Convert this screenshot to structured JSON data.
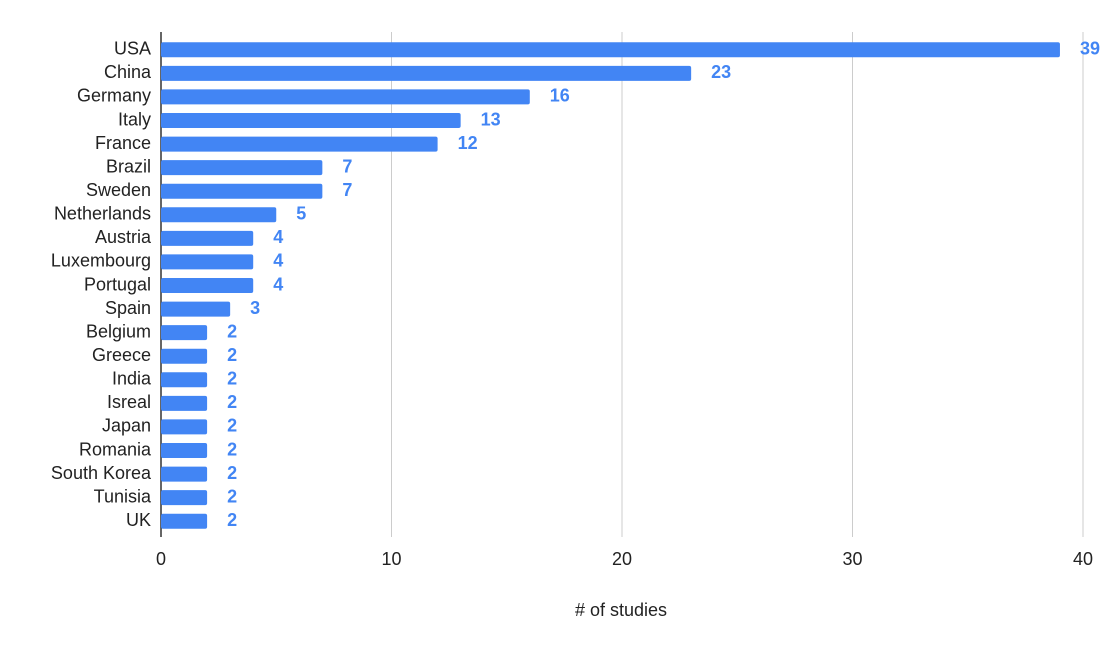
{
  "chart_data": {
    "type": "bar",
    "orientation": "horizontal",
    "categories": [
      "USA",
      "China",
      "Germany",
      "Italy",
      "France",
      "Brazil",
      "Sweden",
      "Netherlands",
      "Austria",
      "Luxembourg",
      "Portugal",
      "Spain",
      "Belgium",
      "Greece",
      "India",
      "Isreal",
      "Japan",
      "Romania",
      "South Korea",
      "Tunisia",
      "UK"
    ],
    "values": [
      39,
      23,
      16,
      13,
      12,
      7,
      7,
      5,
      4,
      4,
      4,
      3,
      2,
      2,
      2,
      2,
      2,
      2,
      2,
      2,
      2
    ],
    "color": "#4285f4",
    "xlabel": "# of studies",
    "xlim": [
      0,
      40
    ],
    "xticks": [
      0,
      10,
      20,
      30,
      40
    ],
    "grid": true
  }
}
